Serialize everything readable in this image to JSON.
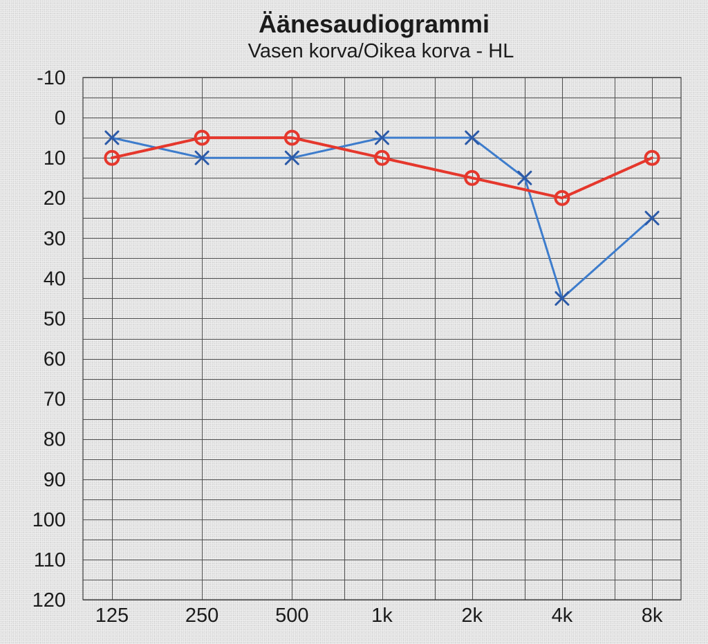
{
  "chart_data": {
    "type": "line",
    "title": "Äänesaudiogrammi",
    "subtitle": "Vasen korva/Oikea korva - HL",
    "xscale": "log",
    "xlim": [
      100,
      10000
    ],
    "ylim": [
      -10,
      120
    ],
    "y_reversed": true,
    "grid": true,
    "y_grid_step": 5,
    "x_gridlines": [
      125,
      250,
      500,
      750,
      1000,
      1500,
      2000,
      3000,
      4000,
      6000,
      8000
    ],
    "x_ticks": [
      125,
      250,
      500,
      1000,
      2000,
      4000,
      8000
    ],
    "x_tick_labels": [
      "125",
      "250",
      "500",
      "1k",
      "2k",
      "4k",
      "8k"
    ],
    "y_ticks": [
      -10,
      0,
      10,
      20,
      30,
      40,
      50,
      60,
      70,
      80,
      90,
      100,
      110,
      120
    ],
    "y_tick_labels": [
      "-10",
      "0",
      "10",
      "20",
      "30",
      "40",
      "50",
      "60",
      "70",
      "80",
      "90",
      "100",
      "110",
      "120"
    ],
    "series": [
      {
        "marker": "x",
        "color": "#3d7ccc",
        "marker_color": "#2c5aa8",
        "x": [
          125,
          250,
          500,
          1000,
          2000,
          3000,
          4000,
          8000
        ],
        "y": [
          5,
          10,
          10,
          5,
          5,
          15,
          45,
          25
        ]
      },
      {
        "marker": "o",
        "color": "#e5372c",
        "x": [
          125,
          250,
          500,
          1000,
          2000,
          4000,
          8000
        ],
        "y": [
          10,
          5,
          5,
          10,
          15,
          20,
          10
        ]
      }
    ]
  }
}
